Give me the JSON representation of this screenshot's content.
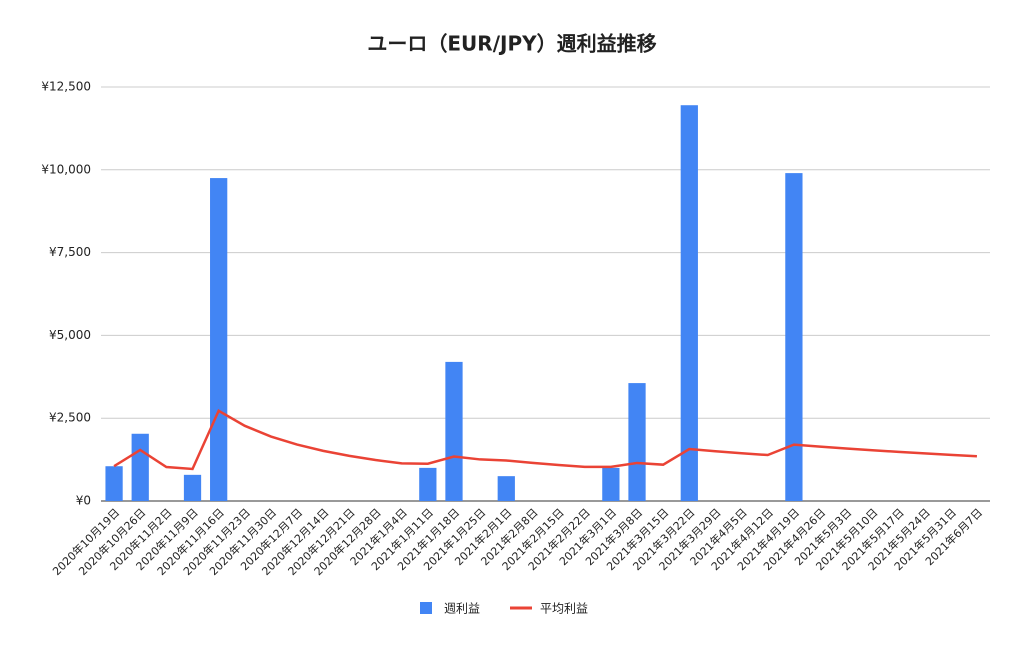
{
  "chart_data": {
    "type": "bar-line",
    "title": "ユーロ（EUR/JPY）週利益推移",
    "categories": [
      "2020年10月19日",
      "2020年10月26日",
      "2020年11月2日",
      "2020年11月9日",
      "2020年11月16日",
      "2020年11月23日",
      "2020年11月30日",
      "2020年12月7日",
      "2020年12月14日",
      "2020年12月21日",
      "2020年12月28日",
      "2021年1月4日",
      "2021年1月11日",
      "2021年1月18日",
      "2021年1月25日",
      "2021年2月1日",
      "2021年2月8日",
      "2021年2月15日",
      "2021年2月22日",
      "2021年3月1日",
      "2021年3月8日",
      "2021年3月15日",
      "2021年3月22日",
      "2021年3月29日",
      "2021年4月5日",
      "2021年4月12日",
      "2021年4月19日",
      "2021年4月26日",
      "2021年5月3日",
      "2021年5月10日",
      "2021年5月17日",
      "2021年5月24日",
      "2021年5月31日",
      "2021年6月7日"
    ],
    "series": [
      {
        "name": "週利益",
        "type": "bar",
        "color": "#4285f4",
        "values": [
          1050,
          2030,
          0,
          790,
          9750,
          0,
          0,
          0,
          0,
          0,
          0,
          0,
          1000,
          4200,
          0,
          750,
          0,
          0,
          0,
          1000,
          3560,
          0,
          11950,
          0,
          0,
          0,
          9900,
          0,
          0,
          0,
          0,
          0,
          0,
          0
        ]
      },
      {
        "name": "平均利益",
        "type": "line",
        "color": "#ea4335",
        "values": [
          1050,
          1540,
          1027,
          967,
          2724,
          2270,
          1946,
          1703,
          1513,
          1362,
          1238,
          1135,
          1125,
          1344,
          1255,
          1223,
          1151,
          1087,
          1030,
          1029,
          1149,
          1097,
          1569,
          1503,
          1443,
          1388,
          1703,
          1642,
          1586,
          1533,
          1483,
          1437,
          1393,
          1352
        ]
      }
    ],
    "ylim": [
      0,
      12500
    ],
    "yticks": [
      {
        "value": 0,
        "label": "¥0"
      },
      {
        "value": 2500,
        "label": "¥2,500"
      },
      {
        "value": 5000,
        "label": "¥5,000"
      },
      {
        "value": 7500,
        "label": "¥7,500"
      },
      {
        "value": 10000,
        "label": "¥10,000"
      },
      {
        "value": 12500,
        "label": "¥12,500"
      }
    ],
    "grid": true
  }
}
